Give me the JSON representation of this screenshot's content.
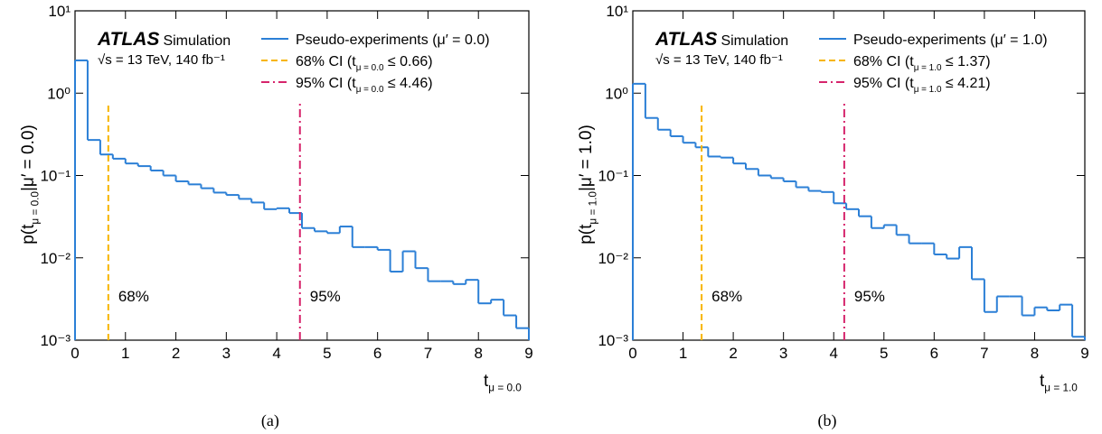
{
  "chart_data": [
    {
      "type": "histogram",
      "caption": "(a)",
      "xlabel": [
        "t",
        "μ = 0.0"
      ],
      "ylabel": [
        "p(t",
        "μ = 0.0",
        "|μ′ = 0.0)"
      ],
      "atlas": [
        "ATLAS",
        "Simulation",
        "√s = 13 TeV, 140 fb⁻¹"
      ],
      "xlim": [
        0,
        9
      ],
      "ylim": [
        0.001,
        10
      ],
      "log_y": true,
      "xticks": [
        0,
        1,
        2,
        3,
        4,
        5,
        6,
        7,
        8,
        9
      ],
      "yticks": [
        {
          "value": 0.001,
          "label": "10⁻³"
        },
        {
          "value": 0.01,
          "label": "10⁻²"
        },
        {
          "value": 0.1,
          "label": "10⁻¹"
        },
        {
          "value": 1,
          "label": "10⁰"
        },
        {
          "value": 10,
          "label": "10¹"
        }
      ],
      "bins": [
        0,
        0.25,
        0.5,
        0.75,
        1,
        1.25,
        1.5,
        1.75,
        2,
        2.25,
        2.5,
        2.75,
        3,
        3.25,
        3.5,
        3.75,
        4,
        4.25,
        4.5,
        4.75,
        5,
        5.25,
        5.5,
        5.75,
        6,
        6.25,
        6.5,
        6.75,
        7,
        7.25,
        7.5,
        7.75,
        8,
        8.25,
        8.5,
        8.75,
        9
      ],
      "series": [
        {
          "name": "Pseudo-experiments (μ′ = 0.0)",
          "color": "#2b7fd6",
          "values": [
            2.5,
            0.27,
            0.18,
            0.16,
            0.14,
            0.13,
            0.115,
            0.1,
            0.085,
            0.078,
            0.07,
            0.062,
            0.058,
            0.052,
            0.047,
            0.039,
            0.04,
            0.035,
            0.023,
            0.021,
            0.02,
            0.024,
            0.0135,
            0.0135,
            0.0125,
            0.0068,
            0.012,
            0.0075,
            0.0052,
            0.0052,
            0.0048,
            0.0054,
            0.0028,
            0.0031,
            0.002,
            0.0014
          ]
        }
      ],
      "vlines": [
        {
          "value": 0.66,
          "label": "68%",
          "legend": [
            "68% CI (t",
            "μ = 0.0",
            " ≤ 0.66)"
          ],
          "color": "#f7b500",
          "style": "dashed"
        },
        {
          "value": 4.46,
          "label": "95%",
          "legend": [
            "95% CI (t",
            "μ = 0.0",
            " ≤ 4.46)"
          ],
          "color": "#d6246b",
          "style": "dashdot"
        }
      ]
    },
    {
      "type": "histogram",
      "caption": "(b)",
      "xlabel": [
        "t",
        "μ = 1.0"
      ],
      "ylabel": [
        "p(t",
        "μ = 1.0",
        "|μ′ = 1.0)"
      ],
      "atlas": [
        "ATLAS",
        "Simulation",
        "√s = 13 TeV, 140 fb⁻¹"
      ],
      "xlim": [
        0,
        9
      ],
      "ylim": [
        0.001,
        10
      ],
      "log_y": true,
      "xticks": [
        0,
        1,
        2,
        3,
        4,
        5,
        6,
        7,
        8,
        9
      ],
      "yticks": [
        {
          "value": 0.001,
          "label": "10⁻³"
        },
        {
          "value": 0.01,
          "label": "10⁻²"
        },
        {
          "value": 0.1,
          "label": "10⁻¹"
        },
        {
          "value": 1,
          "label": "10⁰"
        },
        {
          "value": 10,
          "label": "10¹"
        }
      ],
      "bins": [
        0,
        0.25,
        0.5,
        0.75,
        1,
        1.25,
        1.5,
        1.75,
        2,
        2.25,
        2.5,
        2.75,
        3,
        3.25,
        3.5,
        3.75,
        4,
        4.25,
        4.5,
        4.75,
        5,
        5.25,
        5.5,
        5.75,
        6,
        6.25,
        6.5,
        6.75,
        7,
        7.25,
        7.5,
        7.75,
        8,
        8.25,
        8.5,
        8.75,
        9
      ],
      "series": [
        {
          "name": "Pseudo-experiments (μ′ = 1.0)",
          "color": "#2b7fd6",
          "values": [
            1.3,
            0.5,
            0.36,
            0.3,
            0.25,
            0.22,
            0.17,
            0.165,
            0.14,
            0.12,
            0.1,
            0.093,
            0.085,
            0.072,
            0.065,
            0.063,
            0.046,
            0.039,
            0.032,
            0.023,
            0.025,
            0.019,
            0.015,
            0.015,
            0.011,
            0.0098,
            0.0135,
            0.0055,
            0.0022,
            0.0034,
            0.0034,
            0.002,
            0.0025,
            0.0023,
            0.0027,
            0.0011
          ]
        }
      ],
      "vlines": [
        {
          "value": 1.37,
          "label": "68%",
          "legend": [
            "68% CI (t",
            "μ = 1.0",
            " ≤ 1.37)"
          ],
          "color": "#f7b500",
          "style": "dashed"
        },
        {
          "value": 4.21,
          "label": "95%",
          "legend": [
            "95% CI (t",
            "μ = 1.0",
            " ≤ 4.21)"
          ],
          "color": "#d6246b",
          "style": "dashdot"
        }
      ]
    }
  ]
}
